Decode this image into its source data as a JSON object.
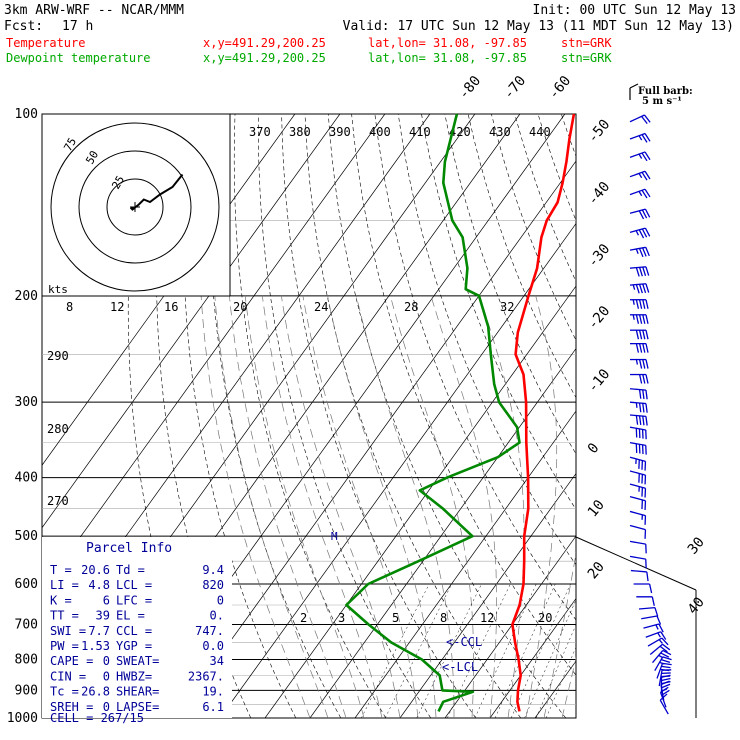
{
  "header": {
    "model": "3km ARW-WRF -- NCAR/MMM",
    "init": "Init: 00 UTC Sun 12 May 13",
    "fcst_label": "Fcst:",
    "fcst_value": "17 h",
    "valid": "Valid: 17 UTC Sun 12 May 13 (11 MDT Sun 12 May 13)",
    "series": [
      {
        "name": "Temperature",
        "xy": "x,y=491.29,200.25",
        "latlon": "lat,lon= 31.08, -97.85",
        "stn": "stn=GRK",
        "color": "#ff0000"
      },
      {
        "name": "Dewpoint temperature",
        "xy": "x,y=491.29,200.25",
        "latlon": "lat,lon= 31.08, -97.85",
        "stn": "stn=GRK",
        "color": "#00aa00"
      }
    ]
  },
  "colors": {
    "temperature": "#ff0000",
    "dewpoint": "#008800",
    "barbs": "#0000cc",
    "params": "#000099",
    "grid": "#000000",
    "moist": "#888888"
  },
  "barb_legend": {
    "line1": "Full barb:",
    "line2": "5 m s⁻¹"
  },
  "hodograph": {
    "units": "kts",
    "ring_labels": [
      "25",
      "50",
      "75"
    ],
    "path": [
      [
        -2,
        0
      ],
      [
        -3,
        -1
      ],
      [
        -2,
        -2
      ],
      [
        3,
        2
      ],
      [
        7,
        6
      ],
      [
        12,
        4
      ],
      [
        20,
        10
      ],
      [
        30,
        16
      ],
      [
        38,
        26
      ]
    ]
  },
  "parcel_info": {
    "title": "Parcel Info",
    "rows": [
      [
        "T  =",
        "20.6",
        "Td =",
        "9.4"
      ],
      [
        "LI =",
        "4.8",
        "LCL =",
        "820"
      ],
      [
        "K  =",
        "6",
        "LFC =",
        "0"
      ],
      [
        "TT =",
        "39",
        "EL =",
        "0."
      ],
      [
        "SWI =",
        "7.7",
        "CCL =",
        "747."
      ],
      [
        "PW =",
        "1.53",
        "YGP =",
        "0.0"
      ],
      [
        "CAPE =",
        "0",
        "SWEAT=",
        "34"
      ],
      [
        "CIN =",
        "0",
        "HWBZ=",
        "2367."
      ],
      [
        "Tc =",
        "26.8",
        "SHEAR=",
        "19."
      ],
      [
        "SREH =",
        "0",
        "LAPSE=",
        "6.1"
      ]
    ],
    "cell": "CELL = 267/15"
  },
  "annotations": {
    "ccl": "<-CCL",
    "lcl": "<-LCL",
    "marker": "M"
  },
  "chart_data": {
    "type": "line",
    "title": "",
    "xlabel": "",
    "ylabel": "",
    "y_scale": "log-pressure",
    "ylim": [
      1000,
      100
    ],
    "pressure_labels": [
      100,
      200,
      300,
      400,
      500,
      600,
      700,
      800,
      900,
      1000
    ],
    "isotherm_labels": [
      {
        "t": -80,
        "text": "-80"
      },
      {
        "t": -70,
        "text": "-70"
      },
      {
        "t": -60,
        "text": "-60"
      },
      {
        "t": -50,
        "text": "-50"
      },
      {
        "t": -40,
        "text": "-40"
      },
      {
        "t": -30,
        "text": "-30"
      },
      {
        "t": -20,
        "text": "-20"
      },
      {
        "t": -10,
        "text": "-10"
      },
      {
        "t": 0,
        "text": "0"
      },
      {
        "t": 10,
        "text": "10"
      },
      {
        "t": 20,
        "text": "20"
      },
      {
        "t": 30,
        "text": "30"
      },
      {
        "t": 40,
        "text": "40"
      }
    ],
    "theta_e_labels": [
      "370",
      "380",
      "390",
      "400",
      "410",
      "420",
      "430",
      "440"
    ],
    "mixing_ratio_labels": [
      "8",
      "12",
      "16",
      "20",
      "24",
      "28",
      "32"
    ],
    "mixing_ratio_labels_low": [
      "2",
      "3",
      "5",
      "8",
      "12",
      "20"
    ],
    "dry_adiabat_labels": [
      "290",
      "280",
      "270"
    ],
    "series": [
      {
        "name": "Temperature",
        "color": "#ff0000",
        "points": [
          [
            975,
            25.5
          ],
          [
            940,
            23.5
          ],
          [
            900,
            21.8
          ],
          [
            850,
            20.0
          ],
          [
            800,
            17.0
          ],
          [
            750,
            13.5
          ],
          [
            700,
            10.0
          ],
          [
            650,
            8.5
          ],
          [
            600,
            6.0
          ],
          [
            550,
            2.5
          ],
          [
            500,
            -1.5
          ],
          [
            450,
            -5.0
          ],
          [
            400,
            -10.0
          ],
          [
            350,
            -16.0
          ],
          [
            300,
            -22.5
          ],
          [
            270,
            -27.5
          ],
          [
            250,
            -32.5
          ],
          [
            230,
            -35.5
          ],
          [
            200,
            -39.0
          ],
          [
            180,
            -41.5
          ],
          [
            160,
            -45.5
          ],
          [
            150,
            -47.0
          ],
          [
            140,
            -47.5
          ],
          [
            130,
            -49.5
          ],
          [
            120,
            -52.0
          ],
          [
            110,
            -55.0
          ],
          [
            100,
            -58.0
          ]
        ]
      },
      {
        "name": "Dewpoint temperature",
        "color": "#008800",
        "points": [
          [
            975,
            7.5
          ],
          [
            940,
            7.0
          ],
          [
            905,
            12.0
          ],
          [
            900,
            5.0
          ],
          [
            850,
            2.0
          ],
          [
            800,
            -4.5
          ],
          [
            750,
            -14.0
          ],
          [
            700,
            -22.0
          ],
          [
            650,
            -30.0
          ],
          [
            600,
            -28.5
          ],
          [
            550,
            -21.0
          ],
          [
            500,
            -13.0
          ],
          [
            450,
            -24.0
          ],
          [
            420,
            -32.0
          ],
          [
            400,
            -28.0
          ],
          [
            370,
            -20.0
          ],
          [
            350,
            -17.5
          ],
          [
            330,
            -20.5
          ],
          [
            300,
            -28.5
          ],
          [
            280,
            -32.5
          ],
          [
            250,
            -38.0
          ],
          [
            225,
            -43.0
          ],
          [
            200,
            -50.0
          ],
          [
            195,
            -54.0
          ],
          [
            180,
            -57.0
          ],
          [
            160,
            -63.0
          ],
          [
            150,
            -68.0
          ],
          [
            130,
            -76.0
          ],
          [
            120,
            -79.0
          ],
          [
            100,
            -84.0
          ]
        ]
      }
    ],
    "wind_barbs": [
      {
        "p": 985,
        "speed_kts": 10,
        "dir": 150
      },
      {
        "p": 960,
        "speed_kts": 20,
        "dir": 160
      },
      {
        "p": 935,
        "speed_kts": 25,
        "dir": 170
      },
      {
        "p": 910,
        "speed_kts": 30,
        "dir": 180
      },
      {
        "p": 885,
        "speed_kts": 30,
        "dir": 190
      },
      {
        "p": 860,
        "speed_kts": 30,
        "dir": 200
      },
      {
        "p": 835,
        "speed_kts": 25,
        "dir": 210
      },
      {
        "p": 810,
        "speed_kts": 25,
        "dir": 220
      },
      {
        "p": 785,
        "speed_kts": 20,
        "dir": 230
      },
      {
        "p": 760,
        "speed_kts": 15,
        "dir": 240
      },
      {
        "p": 735,
        "speed_kts": 15,
        "dir": 250
      },
      {
        "p": 710,
        "speed_kts": 15,
        "dir": 255
      },
      {
        "p": 685,
        "speed_kts": 10,
        "dir": 260
      },
      {
        "p": 660,
        "speed_kts": 10,
        "dir": 265
      },
      {
        "p": 630,
        "speed_kts": 10,
        "dir": 270
      },
      {
        "p": 600,
        "speed_kts": 10,
        "dir": 270
      },
      {
        "p": 570,
        "speed_kts": 10,
        "dir": 275
      },
      {
        "p": 540,
        "speed_kts": 10,
        "dir": 280
      },
      {
        "p": 510,
        "speed_kts": 10,
        "dir": 280
      },
      {
        "p": 480,
        "speed_kts": 10,
        "dir": 285
      },
      {
        "p": 455,
        "speed_kts": 15,
        "dir": 285
      },
      {
        "p": 430,
        "speed_kts": 20,
        "dir": 285
      },
      {
        "p": 410,
        "speed_kts": 25,
        "dir": 285
      },
      {
        "p": 390,
        "speed_kts": 30,
        "dir": 285
      },
      {
        "p": 370,
        "speed_kts": 35,
        "dir": 285
      },
      {
        "p": 350,
        "speed_kts": 40,
        "dir": 280
      },
      {
        "p": 330,
        "speed_kts": 40,
        "dir": 280
      },
      {
        "p": 315,
        "speed_kts": 40,
        "dir": 275
      },
      {
        "p": 300,
        "speed_kts": 35,
        "dir": 275
      },
      {
        "p": 285,
        "speed_kts": 30,
        "dir": 275
      },
      {
        "p": 270,
        "speed_kts": 30,
        "dir": 270
      },
      {
        "p": 255,
        "speed_kts": 35,
        "dir": 270
      },
      {
        "p": 240,
        "speed_kts": 40,
        "dir": 270
      },
      {
        "p": 228,
        "speed_kts": 40,
        "dir": 270
      },
      {
        "p": 215,
        "speed_kts": 45,
        "dir": 270
      },
      {
        "p": 203,
        "speed_kts": 45,
        "dir": 270
      },
      {
        "p": 192,
        "speed_kts": 45,
        "dir": 265
      },
      {
        "p": 180,
        "speed_kts": 40,
        "dir": 265
      },
      {
        "p": 168,
        "speed_kts": 35,
        "dir": 260
      },
      {
        "p": 157,
        "speed_kts": 35,
        "dir": 255
      },
      {
        "p": 146,
        "speed_kts": 30,
        "dir": 255
      },
      {
        "p": 136,
        "speed_kts": 25,
        "dir": 250
      },
      {
        "p": 127,
        "speed_kts": 25,
        "dir": 250
      },
      {
        "p": 118,
        "speed_kts": 25,
        "dir": 250
      },
      {
        "p": 110,
        "speed_kts": 25,
        "dir": 250
      },
      {
        "p": 103,
        "speed_kts": 20,
        "dir": 245
      }
    ]
  }
}
